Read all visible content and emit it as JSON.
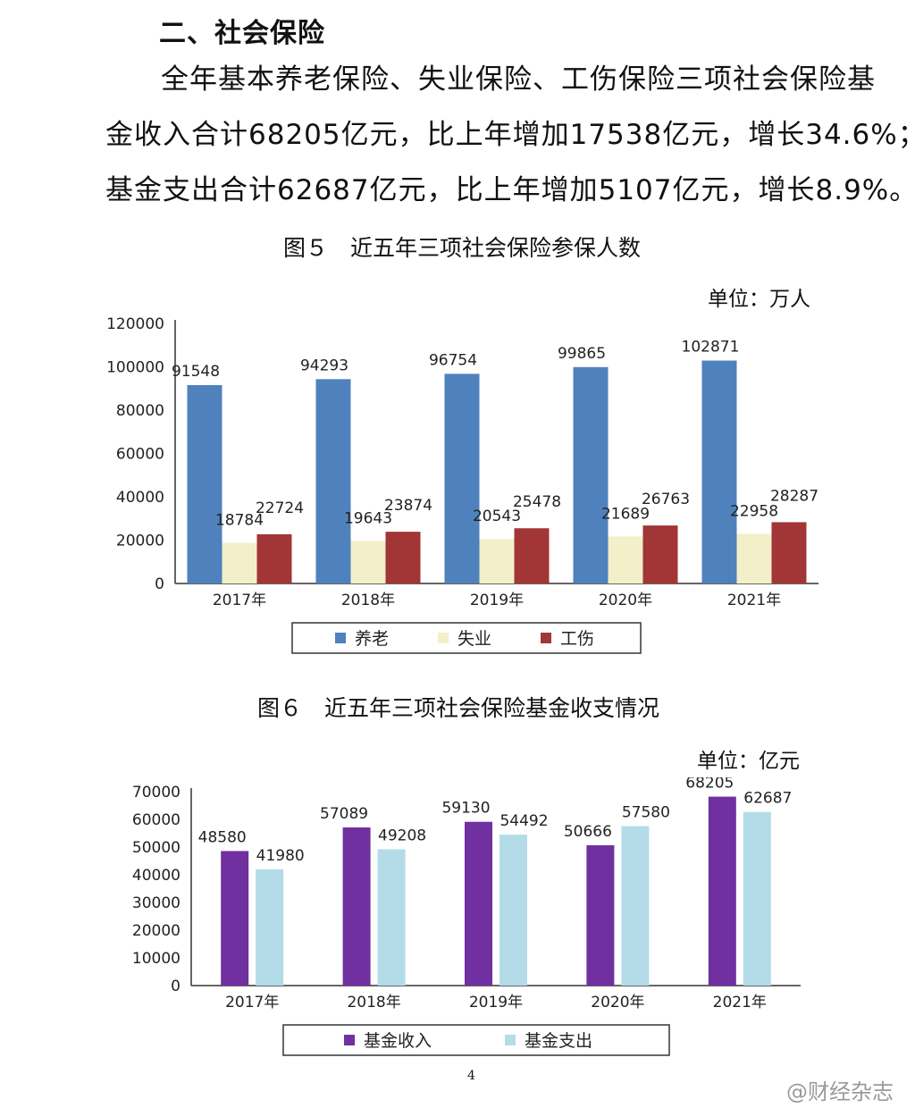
{
  "section_title": "二、社会保险",
  "paragraph": {
    "line1": "全年基本养老保险、失业保险、工伤保险三项社会保险基",
    "line2": "金收入合计68205亿元，比上年增加17538亿元，增长34.6%；",
    "line3": "基金支出合计62687亿元，比上年增加5107亿元，增长8.9%。"
  },
  "figure5": {
    "title": "图５　近五年三项社会保险参保人数",
    "unit": "单位：万人"
  },
  "figure6": {
    "title": "图６　近五年三项社会保险基金收支情况",
    "unit": "单位：亿元"
  },
  "page_number": "4",
  "watermark": "@财经杂志",
  "colors": {
    "pension": "#4f81bd",
    "unemployment": "#f3efc9",
    "injury": "#a23535",
    "fund_income": "#7030a0",
    "fund_expense": "#b4dce8"
  },
  "chart_data": [
    {
      "type": "bar",
      "categories": [
        "2017年",
        "2018年",
        "2019年",
        "2020年",
        "2021年"
      ],
      "series": [
        {
          "name": "养老",
          "values": [
            91548,
            94293,
            96754,
            99865,
            102871
          ]
        },
        {
          "name": "失业",
          "values": [
            18784,
            19643,
            20543,
            21689,
            22958
          ]
        },
        {
          "name": "工伤",
          "values": [
            22724,
            23874,
            25478,
            26763,
            28287
          ]
        }
      ],
      "ylim": [
        0,
        120000
      ],
      "yticks": [
        0,
        20000,
        40000,
        60000,
        80000,
        100000,
        120000
      ],
      "legend": "bottom",
      "grid": false
    },
    {
      "type": "bar",
      "categories": [
        "2017年",
        "2018年",
        "2019年",
        "2020年",
        "2021年"
      ],
      "series": [
        {
          "name": "基金收入",
          "values": [
            48580,
            57089,
            59130,
            50666,
            68205
          ]
        },
        {
          "name": "基金支出",
          "values": [
            41980,
            49208,
            54492,
            57580,
            62687
          ]
        }
      ],
      "ylim": [
        0,
        70000
      ],
      "yticks": [
        0,
        10000,
        20000,
        30000,
        40000,
        50000,
        60000,
        70000
      ],
      "legend": "bottom",
      "grid": false
    }
  ]
}
